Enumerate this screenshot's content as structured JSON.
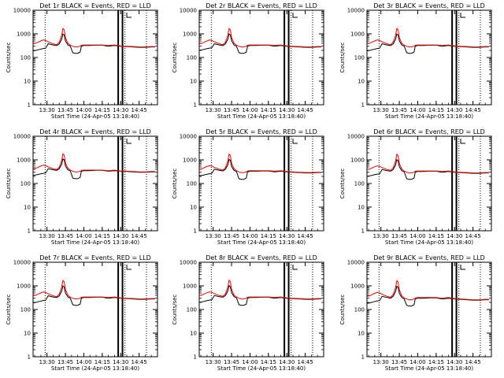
{
  "chart_data": {
    "type": "line",
    "layout": "3x3 grid of panels",
    "shared": {
      "xlabel": "Start Time (24-Apr-05 13:18:40)",
      "ylabel": "Counts/sec",
      "x_tick_labels": [
        "13:30",
        "13:45",
        "14:00",
        "14:15",
        "14:30",
        "14:45"
      ],
      "x_ticks_minutes": [
        30,
        45,
        60,
        75,
        90,
        105
      ],
      "xlim_minutes": [
        18.67,
        120
      ],
      "y_scale": "log",
      "ylim": [
        1,
        10000
      ],
      "y_tick_labels": [
        "1",
        "10",
        "100",
        "1000",
        "10000"
      ],
      "legend_text": "BLACK = Events, RED = LLD",
      "series_colors": {
        "Events": "#000000",
        "LLD": "#ff0000"
      },
      "dotted_vertical_lines_minutes": [
        28.5,
        93.5,
        111
      ],
      "solid_vertical_lines_minutes": [
        88,
        91.5
      ]
    },
    "panels": [
      {
        "title": "Det 1r BLACK = Events, RED = LLD",
        "x_minutes": [
          18.67,
          21,
          24,
          27,
          29,
          31,
          35,
          38,
          40,
          42,
          43,
          44,
          45,
          47,
          49,
          51,
          53,
          55,
          57,
          58,
          60,
          65,
          70,
          75,
          80,
          85,
          90,
          95,
          100,
          105,
          110,
          115,
          118
        ],
        "events": [
          190,
          200,
          220,
          240,
          250,
          380,
          340,
          320,
          380,
          600,
          1000,
          900,
          500,
          340,
          300,
          160,
          150,
          150,
          170,
          300,
          320,
          320,
          330,
          330,
          300,
          320,
          300,
          290,
          280,
          270,
          270,
          280,
          280
        ],
        "lld": [
          380,
          400,
          480,
          550,
          520,
          460,
          380,
          350,
          450,
          900,
          1700,
          1500,
          700,
          400,
          330,
          300,
          280,
          280,
          300,
          330,
          340,
          340,
          340,
          340,
          320,
          340,
          310,
          300,
          290,
          280,
          280,
          290,
          290
        ]
      },
      {
        "title": "Det 2r BLACK = Events, RED = LLD",
        "x_minutes": [
          18.67,
          21,
          24,
          27,
          29,
          31,
          35,
          38,
          40,
          42,
          43,
          44,
          45,
          47,
          49,
          51,
          53,
          55,
          57,
          58,
          60,
          65,
          70,
          75,
          80,
          85,
          90,
          95,
          100,
          105,
          110,
          115,
          118
        ],
        "events": [
          200,
          210,
          230,
          250,
          260,
          380,
          340,
          320,
          380,
          600,
          1000,
          900,
          500,
          340,
          300,
          160,
          150,
          150,
          170,
          300,
          320,
          320,
          330,
          330,
          300,
          320,
          300,
          290,
          280,
          270,
          270,
          280,
          280
        ],
        "lld": [
          380,
          400,
          480,
          550,
          520,
          460,
          380,
          350,
          450,
          900,
          1700,
          1500,
          700,
          400,
          330,
          300,
          280,
          280,
          300,
          330,
          340,
          340,
          340,
          340,
          320,
          340,
          310,
          300,
          290,
          280,
          280,
          290,
          290
        ]
      },
      {
        "title": "Det 3r BLACK = Events, RED = LLD",
        "x_minutes": [
          18.67,
          21,
          24,
          27,
          29,
          31,
          35,
          38,
          40,
          42,
          43,
          44,
          45,
          47,
          49,
          51,
          53,
          55,
          57,
          58,
          60,
          65,
          70,
          75,
          80,
          85,
          90,
          95,
          100,
          105,
          110,
          115,
          118
        ],
        "events": [
          190,
          200,
          220,
          240,
          250,
          380,
          340,
          320,
          380,
          600,
          1000,
          900,
          500,
          340,
          300,
          160,
          150,
          150,
          170,
          300,
          320,
          320,
          330,
          330,
          300,
          320,
          300,
          290,
          280,
          270,
          270,
          280,
          280
        ],
        "lld": [
          380,
          400,
          480,
          550,
          520,
          460,
          380,
          350,
          450,
          900,
          1700,
          1500,
          700,
          400,
          330,
          300,
          280,
          280,
          300,
          330,
          340,
          340,
          340,
          340,
          320,
          340,
          310,
          300,
          290,
          280,
          280,
          290,
          290
        ]
      },
      {
        "title": "Det 4r BLACK = Events, RED = LLD",
        "x_minutes": [
          18.67,
          21,
          24,
          27,
          29,
          31,
          35,
          38,
          40,
          42,
          43,
          44,
          45,
          47,
          49,
          51,
          53,
          55,
          57,
          58,
          60,
          65,
          70,
          75,
          80,
          85,
          90,
          95,
          100,
          105,
          110,
          115,
          118
        ],
        "events": [
          220,
          230,
          250,
          270,
          280,
          420,
          380,
          360,
          420,
          650,
          1100,
          1000,
          550,
          380,
          340,
          170,
          160,
          160,
          180,
          330,
          350,
          350,
          360,
          360,
          330,
          350,
          330,
          320,
          310,
          300,
          300,
          310,
          310
        ],
        "lld": [
          420,
          440,
          520,
          600,
          570,
          500,
          420,
          390,
          490,
          950,
          1800,
          1600,
          750,
          440,
          370,
          330,
          310,
          310,
          330,
          360,
          370,
          370,
          370,
          370,
          350,
          370,
          340,
          330,
          320,
          310,
          310,
          320,
          320
        ]
      },
      {
        "title": "Det 5r BLACK = Events, RED = LLD",
        "x_minutes": [
          18.67,
          21,
          24,
          27,
          29,
          31,
          35,
          38,
          40,
          42,
          43,
          44,
          45,
          47,
          49,
          51,
          53,
          55,
          57,
          58,
          60,
          65,
          70,
          75,
          80,
          85,
          90,
          95,
          100,
          105,
          110,
          115,
          118
        ],
        "events": [
          210,
          220,
          240,
          260,
          270,
          400,
          360,
          340,
          400,
          620,
          1050,
          950,
          520,
          360,
          320,
          160,
          150,
          150,
          170,
          310,
          330,
          330,
          340,
          340,
          310,
          330,
          310,
          300,
          290,
          280,
          280,
          290,
          290
        ],
        "lld": [
          400,
          420,
          500,
          570,
          540,
          480,
          400,
          370,
          470,
          920,
          1750,
          1550,
          720,
          420,
          350,
          310,
          290,
          290,
          310,
          340,
          350,
          350,
          350,
          350,
          330,
          350,
          320,
          310,
          300,
          290,
          290,
          300,
          300
        ]
      },
      {
        "title": "Det 6r BLACK = Events, RED = LLD",
        "x_minutes": [
          18.67,
          21,
          24,
          27,
          29,
          31,
          35,
          38,
          40,
          42,
          43,
          44,
          45,
          47,
          49,
          51,
          53,
          55,
          57,
          58,
          60,
          65,
          70,
          75,
          80,
          85,
          90,
          95,
          100,
          105,
          110,
          115,
          118
        ],
        "events": [
          200,
          210,
          230,
          250,
          260,
          390,
          350,
          330,
          390,
          610,
          1020,
          920,
          510,
          350,
          310,
          160,
          150,
          150,
          170,
          300,
          320,
          320,
          330,
          330,
          300,
          320,
          300,
          290,
          280,
          270,
          270,
          280,
          280
        ],
        "lld": [
          390,
          410,
          490,
          560,
          530,
          470,
          390,
          360,
          460,
          910,
          1720,
          1520,
          710,
          410,
          340,
          300,
          280,
          280,
          300,
          330,
          340,
          340,
          340,
          340,
          320,
          340,
          310,
          300,
          290,
          280,
          280,
          290,
          290
        ]
      },
      {
        "title": "Det 7r BLACK = Events, RED = LLD",
        "x_minutes": [
          18.67,
          21,
          24,
          27,
          29,
          31,
          35,
          38,
          40,
          42,
          43,
          44,
          45,
          47,
          49,
          51,
          53,
          55,
          57,
          58,
          60,
          65,
          70,
          75,
          80,
          85,
          90,
          95,
          100,
          105,
          110,
          115,
          118
        ],
        "events": [
          190,
          200,
          220,
          240,
          250,
          380,
          340,
          320,
          380,
          600,
          1000,
          900,
          500,
          340,
          300,
          160,
          150,
          150,
          170,
          300,
          320,
          320,
          330,
          330,
          300,
          320,
          300,
          290,
          280,
          270,
          270,
          280,
          280
        ],
        "lld": [
          380,
          400,
          480,
          550,
          520,
          460,
          380,
          350,
          450,
          900,
          1700,
          1500,
          700,
          400,
          330,
          300,
          280,
          280,
          300,
          330,
          340,
          340,
          340,
          340,
          320,
          340,
          310,
          300,
          290,
          280,
          280,
          290,
          290
        ]
      },
      {
        "title": "Det 8r BLACK = Events, RED = LLD",
        "x_minutes": [
          18.67,
          21,
          24,
          27,
          29,
          31,
          35,
          38,
          40,
          42,
          43,
          44,
          45,
          47,
          49,
          51,
          53,
          55,
          57,
          58,
          60,
          65,
          70,
          75,
          80,
          85,
          90,
          95,
          100,
          105,
          110,
          115,
          118
        ],
        "events": [
          200,
          210,
          230,
          250,
          260,
          390,
          350,
          330,
          390,
          610,
          1020,
          920,
          510,
          350,
          310,
          160,
          150,
          150,
          170,
          300,
          320,
          320,
          330,
          330,
          300,
          320,
          300,
          290,
          280,
          270,
          270,
          280,
          280
        ],
        "lld": [
          390,
          410,
          490,
          560,
          530,
          470,
          390,
          360,
          460,
          910,
          1720,
          1520,
          710,
          410,
          340,
          300,
          280,
          280,
          300,
          330,
          340,
          340,
          340,
          340,
          320,
          340,
          310,
          300,
          290,
          280,
          280,
          290,
          290
        ]
      },
      {
        "title": "Det 9r BLACK = Events, RED = LLD",
        "x_minutes": [
          18.67,
          21,
          24,
          27,
          29,
          31,
          35,
          38,
          40,
          42,
          43,
          44,
          45,
          47,
          49,
          51,
          53,
          55,
          57,
          58,
          60,
          65,
          70,
          75,
          80,
          85,
          90,
          95,
          100,
          105,
          110,
          115,
          118
        ],
        "events": [
          180,
          190,
          210,
          230,
          240,
          360,
          320,
          300,
          360,
          580,
          960,
          860,
          480,
          320,
          280,
          150,
          140,
          140,
          160,
          280,
          300,
          300,
          310,
          310,
          280,
          300,
          280,
          270,
          260,
          250,
          250,
          260,
          260
        ],
        "lld": [
          360,
          380,
          460,
          530,
          500,
          440,
          360,
          330,
          430,
          880,
          1650,
          1450,
          680,
          380,
          310,
          280,
          260,
          260,
          280,
          310,
          320,
          320,
          320,
          320,
          300,
          320,
          290,
          280,
          270,
          260,
          260,
          270,
          270
        ]
      }
    ]
  }
}
